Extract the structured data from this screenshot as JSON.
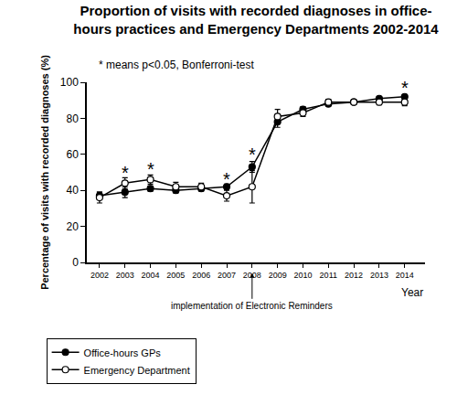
{
  "chart_data": {
    "type": "line",
    "title": "Proportion of visits with recorded diagnoses in office-\nhours practices and Emergency Departments 2002-2014",
    "note": "* means p<0.05, Bonferroni-test",
    "x_label": "Year",
    "y_label": "Percentage of visits with recorded diagnoses (%)",
    "x": [
      2002,
      2003,
      2004,
      2005,
      2006,
      2007,
      2008,
      2009,
      2010,
      2011,
      2012,
      2013,
      2014
    ],
    "xlim": [
      2001.5,
      2014.8
    ],
    "xticks": [
      2002,
      2003,
      2004,
      2005,
      2006,
      2007,
      2008,
      2009,
      2010,
      2011,
      2012,
      2013,
      2014
    ],
    "ylim": [
      0,
      100
    ],
    "yticks": [
      0,
      20,
      40,
      60,
      80,
      100
    ],
    "grid": false,
    "legend": "bottom left",
    "series": [
      {
        "name": "Office-hours GPs",
        "color": "#000000",
        "marker": "filled circle",
        "values": [
          37,
          39,
          41,
          40,
          41,
          42,
          53,
          78,
          85,
          88,
          89,
          91,
          92
        ],
        "error": [
          2,
          3,
          1.5,
          1.5,
          1.5,
          1.5,
          3,
          3,
          1.5,
          1,
          1,
          1,
          1
        ]
      },
      {
        "name": "Emergency Department",
        "color": "#000000",
        "marker": "open circle",
        "values": [
          36,
          44,
          46,
          42,
          42,
          37,
          42,
          81,
          83,
          89,
          89,
          89,
          89
        ],
        "error": [
          3,
          3,
          2.5,
          2.5,
          2,
          3,
          9,
          4,
          2,
          1.5,
          1,
          1.5,
          2
        ]
      }
    ],
    "annotations": [
      {
        "text": "*",
        "x": 2003,
        "y": 50
      },
      {
        "text": "*",
        "x": 2004,
        "y": 52
      },
      {
        "text": "*",
        "x": 2007,
        "y": 46
      },
      {
        "text": "*",
        "x": 2008,
        "y": 60
      },
      {
        "text": "*",
        "x": 2014,
        "y": 97
      }
    ],
    "event": {
      "text": "implementation of Electronic Reminders",
      "x": 2008
    }
  }
}
